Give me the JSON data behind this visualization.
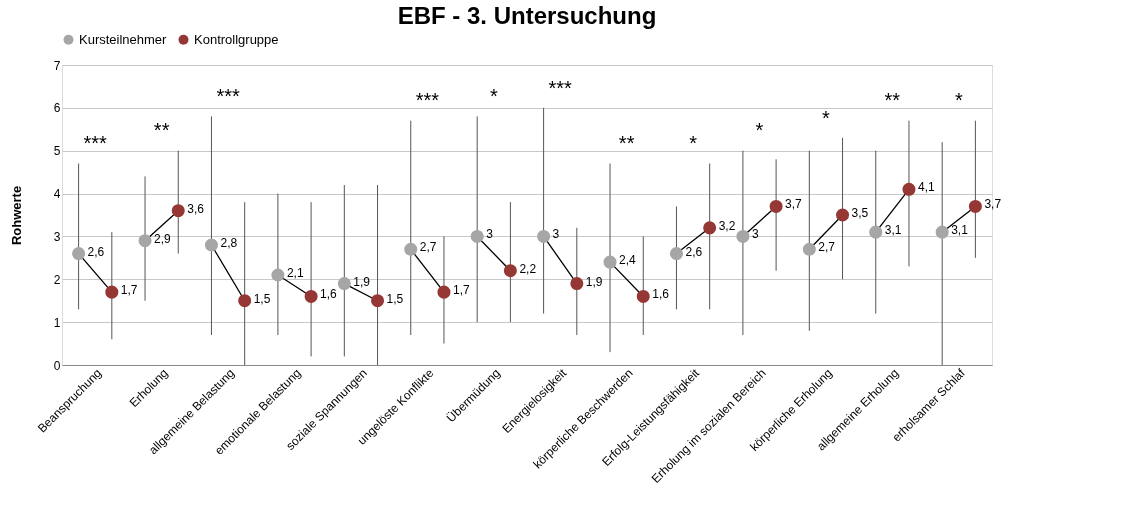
{
  "chart_data": {
    "type": "scatter",
    "title": "EBF - 3. Untersuchung",
    "ylabel": "Rohwerte",
    "categories": [
      "Beanspruchung",
      "Erholung",
      "allgemeine Belastung",
      "emotionale Belastung",
      "soziale Spannungen",
      "ungelöste Konflikte",
      "Übermüdung",
      "Energielosigkeit",
      "körperliche Beschwerden",
      "Erfolg-Leistungsfähigkeit",
      "Erholung im sozialen Bereich",
      "körperliche Erholung",
      "allgemeine Erholung",
      "erholsamer Schlaf"
    ],
    "series": [
      {
        "name": "Kursteilnehmer",
        "color": "#a6a6a6",
        "values": [
          2.6,
          2.9,
          2.8,
          2.1,
          1.9,
          2.7,
          3,
          3,
          2.4,
          2.6,
          3,
          2.7,
          3.1,
          3.1
        ],
        "value_labels": [
          "2,6",
          "2,9",
          "2,8",
          "2,1",
          "1,9",
          "2,7",
          "3",
          "3",
          "2,4",
          "2,6",
          "3",
          "2,7",
          "3,1",
          "3,1"
        ],
        "errors": [
          [
            1.3,
            4.7
          ],
          [
            1.5,
            4.4
          ],
          [
            0.7,
            5.8
          ],
          [
            0.7,
            4.0
          ],
          [
            0.2,
            4.2
          ],
          [
            0.7,
            5.7
          ],
          [
            1.0,
            5.8
          ],
          [
            1.2,
            6.0
          ],
          [
            0.3,
            4.7
          ],
          [
            1.3,
            3.7
          ],
          [
            0.7,
            5.0
          ],
          [
            0.8,
            5.0
          ],
          [
            1.2,
            5.0
          ],
          [
            0,
            5.2
          ]
        ]
      },
      {
        "name": "Kontrollgruppe",
        "color": "#953735",
        "values": [
          1.7,
          3.6,
          1.5,
          1.6,
          1.5,
          1.7,
          2.2,
          1.9,
          1.6,
          3.2,
          3.7,
          3.5,
          4.1,
          3.7
        ],
        "value_labels": [
          "1,7",
          "3,6",
          "1,5",
          "1,6",
          "1,5",
          "1,7",
          "2,2",
          "1,9",
          "1,6",
          "3,2",
          "3,7",
          "3,5",
          "4,1",
          "3,7"
        ],
        "errors": [
          [
            0.6,
            3.1
          ],
          [
            2.6,
            5.0
          ],
          [
            0,
            3.8
          ],
          [
            0.2,
            3.8
          ],
          [
            0,
            4.2
          ],
          [
            0.5,
            3.0
          ],
          [
            1.0,
            3.8
          ],
          [
            0.7,
            3.2
          ],
          [
            0.7,
            3.0
          ],
          [
            1.3,
            4.7
          ],
          [
            2.2,
            4.8
          ],
          [
            2.0,
            5.3
          ],
          [
            2.3,
            5.7
          ],
          [
            2.5,
            5.7
          ]
        ]
      }
    ],
    "annotations": [
      "***",
      "**",
      "***",
      "***",
      "*",
      "***",
      "**",
      "*",
      "*",
      "*",
      "**",
      "*"
    ],
    "ylim": [
      0,
      7
    ],
    "yticks": [
      0,
      1,
      2,
      3,
      4,
      5,
      6,
      7
    ],
    "grid": "y",
    "legend": "top",
    "marker": "circle"
  }
}
